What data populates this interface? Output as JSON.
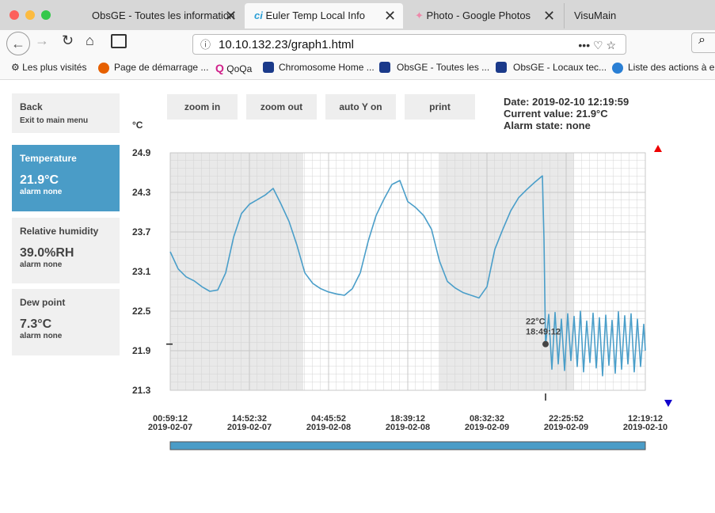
{
  "browser": {
    "tabs": [
      "ObsGE - Toutes les information",
      "Euler Temp Local Info",
      "Photo - Google Photos",
      "VisuMain"
    ],
    "url": "10.10.132.23/graph1.html",
    "bookmarks": [
      "Les plus visités",
      "Page de démarrage ...",
      "QoQa",
      "Chromosome Home ...",
      "ObsGE - Toutes les ...",
      "ObsGE - Locaux tec...",
      "Liste des actions à e..."
    ]
  },
  "sidebar": {
    "back": {
      "title": "Back",
      "subtitle": "Exit to main menu"
    },
    "items": [
      {
        "title": "Temperature",
        "value": "21.9°C",
        "alarm": "alarm none"
      },
      {
        "title": "Relative humidity",
        "value": "39.0%RH",
        "alarm": "alarm none"
      },
      {
        "title": "Dew point",
        "value": "7.3°C",
        "alarm": "alarm none"
      }
    ]
  },
  "buttons": [
    "zoom in",
    "zoom out",
    "auto Y on",
    "print"
  ],
  "info": [
    "Date: 2019-02-10 12:19:59",
    "Current value: 21.9°C",
    "Alarm state: none"
  ],
  "chart_data": {
    "type": "line",
    "ylabel": "°C",
    "color": "#4a9ec9",
    "grid": true,
    "ylim": [
      21.3,
      24.9
    ],
    "yticks": [
      24.9,
      24.3,
      23.7,
      23.1,
      22.5,
      21.9,
      21.3
    ],
    "xlim": [
      "2019-02-07 00:59:12",
      "2019-02-10 12:19:12"
    ],
    "xticks": [
      {
        "value": "2019-02-07 00:59:12",
        "label": [
          "00:59:12",
          "2019-02-07"
        ]
      },
      {
        "value": "2019-02-07 14:52:32",
        "label": [
          "14:52:32",
          "2019-02-07"
        ]
      },
      {
        "value": "2019-02-08 04:45:52",
        "label": [
          "04:45:52",
          "2019-02-08"
        ]
      },
      {
        "value": "2019-02-08 18:39:12",
        "label": [
          "18:39:12",
          "2019-02-08"
        ]
      },
      {
        "value": "2019-02-09 08:32:32",
        "label": [
          "08:32:32",
          "2019-02-09"
        ]
      },
      {
        "value": "2019-02-09 22:25:52",
        "label": [
          "22:25:52",
          "2019-02-09"
        ]
      },
      {
        "value": "2019-02-10 12:19:12",
        "label": [
          "12:19:12",
          "2019-02-10"
        ]
      }
    ],
    "x": [
      "2019-02-07 00:59:12",
      "2019-02-07 02:22:32",
      "2019-02-07 03:45:52",
      "2019-02-07 05:09:12",
      "2019-02-07 06:32:32",
      "2019-02-07 07:55:52",
      "2019-02-07 09:19:12",
      "2019-02-07 10:42:32",
      "2019-02-07 12:05:52",
      "2019-02-07 13:29:12",
      "2019-02-07 14:52:32",
      "2019-02-07 16:15:52",
      "2019-02-07 17:39:12",
      "2019-02-07 19:02:32",
      "2019-02-07 20:25:52",
      "2019-02-07 21:49:12",
      "2019-02-07 23:12:32",
      "2019-02-08 00:35:52",
      "2019-02-08 01:59:12",
      "2019-02-08 03:22:32",
      "2019-02-08 04:45:52",
      "2019-02-08 06:09:12",
      "2019-02-08 07:32:32",
      "2019-02-08 08:55:52",
      "2019-02-08 10:19:12",
      "2019-02-08 11:42:32",
      "2019-02-08 13:05:52",
      "2019-02-08 14:29:12",
      "2019-02-08 15:52:32",
      "2019-02-08 17:15:52",
      "2019-02-08 18:39:12",
      "2019-02-08 20:02:32",
      "2019-02-08 21:25:52",
      "2019-02-08 22:49:12",
      "2019-02-09 00:12:32",
      "2019-02-09 01:35:52",
      "2019-02-09 02:59:12",
      "2019-02-09 04:22:32",
      "2019-02-09 05:45:52",
      "2019-02-09 07:09:12",
      "2019-02-09 08:32:32",
      "2019-02-09 09:55:52",
      "2019-02-09 11:19:12",
      "2019-02-09 12:42:32",
      "2019-02-09 14:05:52",
      "2019-02-09 15:29:12",
      "2019-02-09 16:52:32",
      "2019-02-09 18:15:52",
      "2019-02-09 18:32:32",
      "2019-02-09 18:49:12",
      "2019-02-09 19:22:32",
      "2019-02-09 19:55:52",
      "2019-02-09 20:29:12",
      "2019-02-09 21:02:32",
      "2019-02-09 21:35:52",
      "2019-02-09 22:09:12",
      "2019-02-09 22:42:32",
      "2019-02-09 23:15:52",
      "2019-02-09 23:49:12",
      "2019-02-10 00:22:32",
      "2019-02-10 00:55:52",
      "2019-02-10 01:29:12",
      "2019-02-10 02:02:32",
      "2019-02-10 02:35:52",
      "2019-02-10 03:09:12",
      "2019-02-10 03:42:32",
      "2019-02-10 04:15:52",
      "2019-02-10 04:49:12",
      "2019-02-10 05:22:32",
      "2019-02-10 05:55:52",
      "2019-02-10 06:29:12",
      "2019-02-10 07:02:32",
      "2019-02-10 07:35:52",
      "2019-02-10 08:09:12",
      "2019-02-10 08:42:32",
      "2019-02-10 09:15:52",
      "2019-02-10 09:49:12",
      "2019-02-10 10:22:32",
      "2019-02-10 10:55:52",
      "2019-02-10 11:29:12",
      "2019-02-10 12:02:32",
      "2019-02-10 12:19:12"
    ],
    "values": [
      23.4,
      23.14,
      23.02,
      22.96,
      22.87,
      22.8,
      22.82,
      23.08,
      23.62,
      23.98,
      24.12,
      24.19,
      24.26,
      24.36,
      24.12,
      23.86,
      23.5,
      23.08,
      22.92,
      22.84,
      22.79,
      22.76,
      22.74,
      22.84,
      23.08,
      23.56,
      23.95,
      24.2,
      24.42,
      24.48,
      24.16,
      24.07,
      23.95,
      23.74,
      23.26,
      22.95,
      22.85,
      22.78,
      22.74,
      22.7,
      22.87,
      23.44,
      23.74,
      24.02,
      24.22,
      24.34,
      24.45,
      24.55,
      23.6,
      21.97,
      22.45,
      21.62,
      22.48,
      21.7,
      22.38,
      21.6,
      22.46,
      21.75,
      22.42,
      21.66,
      22.5,
      21.58,
      22.35,
      21.72,
      22.47,
      21.64,
      22.4,
      21.52,
      22.44,
      21.68,
      22.36,
      21.56,
      22.49,
      21.62,
      22.43,
      21.7,
      22.46,
      21.58,
      22.38,
      21.66,
      22.3,
      21.9
    ],
    "annotation": {
      "x": "2019-02-09 18:49:12",
      "y": 22,
      "labels": [
        "22°C",
        "18:49:12"
      ]
    }
  }
}
